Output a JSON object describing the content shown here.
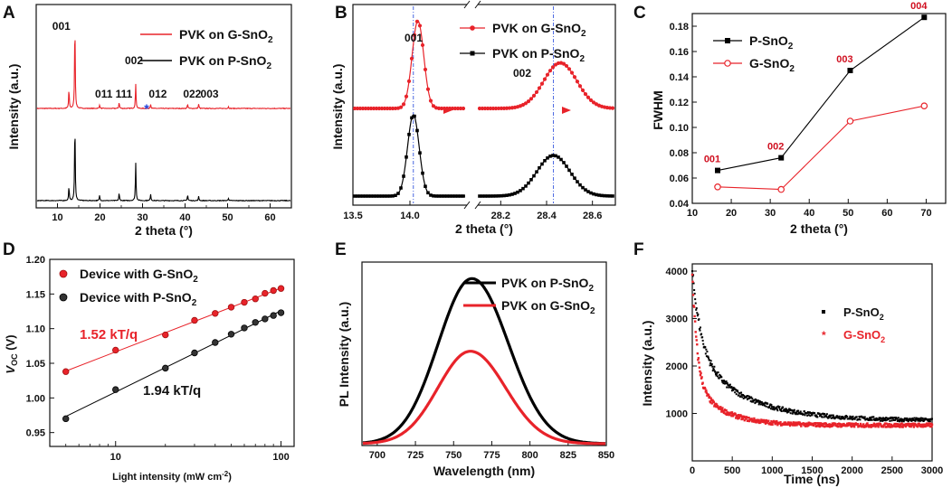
{
  "chart_data": [
    {
      "id": "A",
      "type": "line",
      "panel_label": "A",
      "xlabel": "2 theta (°)",
      "ylabel": "Intensity (a.u.)",
      "xlim": [
        5,
        65
      ],
      "xticks": [
        10,
        20,
        30,
        40,
        50,
        60
      ],
      "series": [
        {
          "name": "PVK on G-SnO2",
          "color": "#e8232a",
          "peaks": [
            [
              12.7,
              0.22
            ],
            [
              14.1,
              1.0
            ],
            [
              19.9,
              0.04
            ],
            [
              24.5,
              0.07
            ],
            [
              28.4,
              0.28
            ],
            [
              31.9,
              0.05
            ],
            [
              40.6,
              0.05
            ],
            [
              43.2,
              0.05
            ],
            [
              50.2,
              0.02
            ]
          ]
        },
        {
          "name": "PVK on P-SnO2",
          "color": "#000000",
          "peaks": [
            [
              12.7,
              0.17
            ],
            [
              14.1,
              0.95
            ],
            [
              19.9,
              0.06
            ],
            [
              24.5,
              0.09
            ],
            [
              28.4,
              0.45
            ],
            [
              31.9,
              0.08
            ],
            [
              40.6,
              0.07
            ],
            [
              43.2,
              0.05
            ],
            [
              50.2,
              0.03
            ]
          ]
        }
      ],
      "peak_labels": [
        {
          "text": "001",
          "x": 14.1
        },
        {
          "text": "002",
          "x": 28.4
        },
        {
          "text": "011",
          "x": 19.9
        },
        {
          "text": "111",
          "x": 24.5
        },
        {
          "text": "012",
          "x": 31.9
        },
        {
          "text": "022",
          "x": 40.6
        },
        {
          "text": "003",
          "x": 43.2
        }
      ],
      "star_at": 31.0,
      "legend": [
        {
          "text": "PVK on G-SnO",
          "sub": "2",
          "color": "#e8232a"
        },
        {
          "text": "PVK on P-SnO",
          "sub": "2",
          "color": "#000000"
        }
      ]
    },
    {
      "id": "B",
      "type": "line",
      "panel_label": "B",
      "xlabel": "2 theta (°)",
      "ylabel": "Intensity (a.u.)",
      "segments": [
        {
          "xlim": [
            13.5,
            14.5
          ],
          "xticks": [
            "13.5",
            "14.0"
          ],
          "tick_values": [
            13.5,
            14.0
          ]
        },
        {
          "xlim": [
            28.1,
            28.7
          ],
          "xticks": [
            "28.2",
            "28.4",
            "28.6"
          ],
          "tick_values": [
            28.2,
            28.4,
            28.6
          ]
        }
      ],
      "series": [
        {
          "name": "PVK on G-SnO2",
          "color": "#e8232a",
          "marker": "circle",
          "peaks": [
            {
              "center": 14.07,
              "fwhm": 0.12,
              "height": 1.0
            },
            {
              "center": 28.46,
              "fwhm": 0.17,
              "height": 0.52
            }
          ]
        },
        {
          "name": "PVK on P-SnO2",
          "color": "#000000",
          "marker": "square",
          "peaks": [
            {
              "center": 14.03,
              "fwhm": 0.12,
              "height": 1.0
            },
            {
              "center": 28.43,
              "fwhm": 0.17,
              "height": 0.5
            }
          ]
        }
      ],
      "reference_lines": [
        14.03,
        28.43
      ],
      "peak_labels": [
        {
          "text": "001"
        },
        {
          "text": "002"
        }
      ],
      "legend": [
        {
          "text": "PVK on G-SnO",
          "sub": "2",
          "color": "#e8232a"
        },
        {
          "text": "PVK on P-SnO",
          "sub": "2",
          "color": "#000000"
        }
      ]
    },
    {
      "id": "C",
      "type": "line",
      "panel_label": "C",
      "xlabel": "2 theta (°)",
      "ylabel": "FWHM",
      "xlim": [
        10,
        75
      ],
      "ylim": [
        0.04,
        0.19
      ],
      "xticks": [
        10,
        20,
        30,
        40,
        50,
        60,
        70
      ],
      "yticks": [
        "0.04",
        "0.06",
        "0.08",
        "0.10",
        "0.12",
        "0.14",
        "0.16",
        "0.18"
      ],
      "x": [
        16.5,
        32.8,
        50.5,
        69.5
      ],
      "series": [
        {
          "name": "P-SnO2",
          "color": "#000000",
          "marker": "square",
          "values": [
            0.066,
            0.076,
            0.145,
            0.187
          ]
        },
        {
          "name": "G-SnO2",
          "color": "#e8232a",
          "marker": "circle",
          "values": [
            0.053,
            0.051,
            0.105,
            0.117
          ]
        }
      ],
      "point_labels": [
        "001",
        "002",
        "003",
        "004"
      ],
      "legend": [
        {
          "text": "P-SnO",
          "sub": "2",
          "color": "#000000"
        },
        {
          "text": "G-SnO",
          "sub": "2",
          "color": "#e8232a"
        }
      ]
    },
    {
      "id": "D",
      "type": "scatter",
      "panel_label": "D",
      "xlabel": "Light intensity (mW cm",
      "xlabel_sup": "-2",
      "xlabel_end": ")",
      "ylabel": "V",
      "ylabel_sub": "OC",
      "ylabel_end": " (V)",
      "xscale": "log",
      "xlim": [
        4,
        120
      ],
      "ylim": [
        0.93,
        1.2
      ],
      "xticks": [
        "10",
        "100"
      ],
      "xtick_values": [
        10,
        100
      ],
      "yticks": [
        "0.95",
        "1.00",
        "1.05",
        "1.10",
        "1.15",
        "1.20"
      ],
      "x": [
        5,
        10,
        20,
        30,
        40,
        50,
        60,
        70,
        80,
        90,
        100
      ],
      "series": [
        {
          "name": "Device with G-SnO2",
          "color": "#e8232a",
          "values": [
            1.038,
            1.069,
            1.091,
            1.112,
            1.122,
            1.131,
            1.138,
            1.143,
            1.151,
            1.155,
            1.158
          ]
        },
        {
          "name": "Device with P-SnO2",
          "color": "#000000",
          "values": [
            0.97,
            1.012,
            1.043,
            1.065,
            1.08,
            1.092,
            1.101,
            1.109,
            1.114,
            1.119,
            1.123
          ]
        }
      ],
      "fits": [
        {
          "text": "1.52 kT/q",
          "color": "#e8232a"
        },
        {
          "text": "1.94 kT/q",
          "color": "#111111"
        }
      ],
      "legend": [
        {
          "text": "Device with G-SnO",
          "sub": "2",
          "color": "#e8232a"
        },
        {
          "text": "Device with P-SnO",
          "sub": "2",
          "color": "#000000"
        }
      ]
    },
    {
      "id": "E",
      "type": "line",
      "panel_label": "E",
      "xlabel": "Wavelength (nm)",
      "ylabel": "PL Intensity (a.u.)",
      "xlim": [
        690,
        850
      ],
      "ylim": [
        0,
        1.1
      ],
      "xticks": [
        700,
        725,
        750,
        775,
        800,
        825,
        850
      ],
      "series": [
        {
          "name": "PVK on P-SnO2",
          "color": "#000000",
          "peak": 762,
          "fwhm": 52,
          "height": 1.0
        },
        {
          "name": "PVK on G-SnO2",
          "color": "#e8232a",
          "peak": 761,
          "fwhm": 50,
          "height": 0.56
        }
      ],
      "legend": [
        {
          "text": "PVK on P-SnO",
          "sub": "2",
          "color": "#000000"
        },
        {
          "text": "PVK on G-SnO",
          "sub": "2",
          "color": "#e8232a"
        }
      ]
    },
    {
      "id": "F",
      "type": "scatter",
      "panel_label": "F",
      "xlabel": "Time (ns)",
      "ylabel": "Intensity (a.u.)",
      "xlim": [
        0,
        3000
      ],
      "ylim": [
        0,
        4000
      ],
      "xticks": [
        0,
        500,
        1000,
        1500,
        2000,
        2500,
        3000
      ],
      "yticks": [
        1000,
        2000,
        3000,
        4000
      ],
      "series": [
        {
          "name": "P-SnO2",
          "color": "#000000",
          "start": 4000,
          "plateau": 850,
          "a1": 1700,
          "tau1": 110,
          "a2": 1450,
          "tau2": 620
        },
        {
          "name": "G-SnO2",
          "color": "#e8232a",
          "start": 4000,
          "plateau": 750,
          "a1": 2350,
          "tau1": 60,
          "a2": 900,
          "tau2": 360
        }
      ],
      "legend": [
        {
          "text": "P-SnO",
          "sub": "2",
          "color": "#000000"
        },
        {
          "text": "G-SnO",
          "sub": "2",
          "color": "#e8232a"
        }
      ]
    }
  ]
}
